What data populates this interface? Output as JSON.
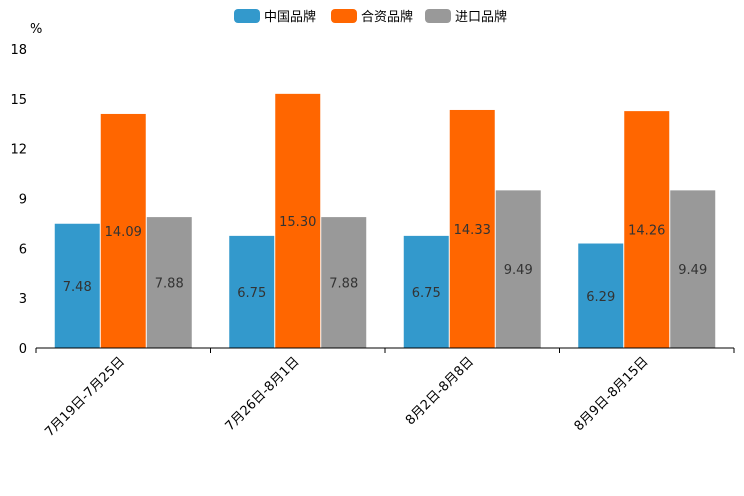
{
  "chart_data": {
    "type": "bar",
    "title": "",
    "xlabel": "",
    "ylabel": "%",
    "ylim": [
      0,
      18
    ],
    "yticks": [
      0,
      3,
      6,
      9,
      12,
      15,
      18
    ],
    "grid": false,
    "legend_position": "top-center",
    "categories": [
      "7月19日-7月25日",
      "7月26日-8月1日",
      "8月2日-8月8日",
      "8月9日-8月15日"
    ],
    "series": [
      {
        "name": "中国品牌",
        "color": "#3399CC",
        "values": [
          7.48,
          6.75,
          6.75,
          6.29
        ],
        "labels": [
          "7.48",
          "6.75",
          "6.75",
          "6.29"
        ]
      },
      {
        "name": "合资品牌",
        "color": "#FF6600",
        "values": [
          14.09,
          15.3,
          14.33,
          14.26
        ],
        "labels": [
          "14.09",
          "15.30",
          "14.33",
          "14.26"
        ]
      },
      {
        "name": "进口品牌",
        "color": "#999999",
        "values": [
          7.88,
          7.88,
          9.49,
          9.49
        ],
        "labels": [
          "7.88",
          "7.88",
          "9.49",
          "9.49"
        ]
      }
    ]
  }
}
